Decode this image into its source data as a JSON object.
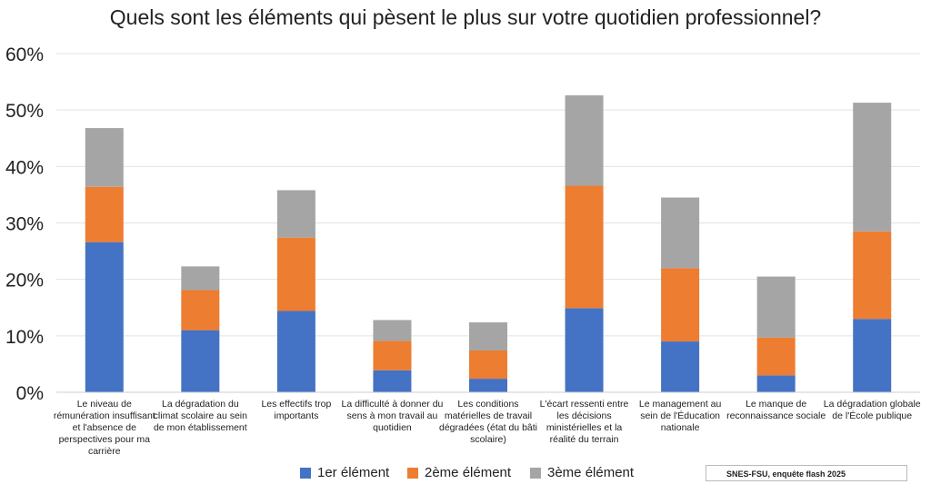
{
  "chart_data": {
    "type": "bar",
    "stacked": true,
    "title": "Quels sont les éléments qui pèsent le plus sur votre quotidien professionnel?",
    "xlabel": "",
    "ylabel": "",
    "ylim": [
      0,
      60
    ],
    "yticks": [
      "0%",
      "10%",
      "20%",
      "30%",
      "40%",
      "50%",
      "60%"
    ],
    "grid": true,
    "legend_position": "bottom",
    "categories": [
      "Le niveau de rémunération insuffisant et l'absence de perspectives pour ma carrière",
      "La dégradation du climat scolaire au sein de mon établissement",
      "Les effectifs trop importants",
      "La difficulté à donner du sens à mon travail au quotidien",
      "Les conditions matérielles de travail dégradées (état du bâti scolaire)",
      "L'écart ressenti entre les décisions ministérielles et la réalité du terrain",
      "Le management au sein de l'Éducation nationale",
      "Le manque de reconnaissance sociale",
      "La dégradation globale de l'École publique"
    ],
    "series": [
      {
        "name": "1er élément",
        "color": "#4472c4",
        "values": [
          26.6,
          11.0,
          14.4,
          3.9,
          2.4,
          14.9,
          9.0,
          3.0,
          13.0
        ]
      },
      {
        "name": "2ème élément",
        "color": "#ed7d31",
        "values": [
          9.8,
          7.1,
          13.0,
          5.2,
          5.0,
          21.7,
          13.0,
          6.7,
          15.5
        ]
      },
      {
        "name": "3ème élément",
        "color": "#a5a5a5",
        "values": [
          10.4,
          4.2,
          8.4,
          3.7,
          5.0,
          16.0,
          12.5,
          10.8,
          22.8
        ]
      }
    ],
    "source": "SNES-FSU, enquête flash 2025"
  }
}
